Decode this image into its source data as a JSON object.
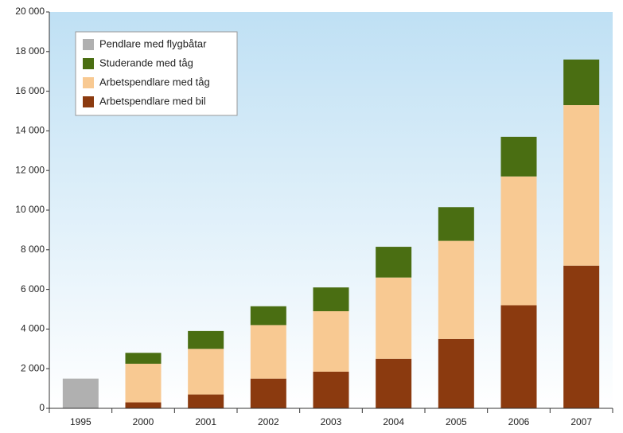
{
  "chart_data": {
    "type": "stacked_bar",
    "categories": [
      "1995",
      "2000",
      "2001",
      "2002",
      "2003",
      "2004",
      "2005",
      "2006",
      "2007"
    ],
    "series": [
      {
        "name": "Arbetspendlare med bil",
        "color": "#8b3a0f",
        "values": [
          null,
          300,
          700,
          1500,
          1850,
          2500,
          3500,
          5200,
          7200
        ]
      },
      {
        "name": "Arbetspendlare med tåg",
        "color": "#f8c992",
        "values": [
          null,
          1950,
          2300,
          2700,
          3050,
          4100,
          4950,
          6500,
          8100
        ]
      },
      {
        "name": "Studerande med tåg",
        "color": "#4a6e12",
        "values": [
          null,
          550,
          900,
          950,
          1200,
          1550,
          1700,
          2000,
          2300
        ]
      },
      {
        "name": "Pendlare med flygbåtar",
        "color": "#b0b0b0",
        "values": [
          1500,
          null,
          null,
          null,
          null,
          null,
          null,
          null,
          null
        ]
      }
    ],
    "ylim": [
      0,
      20000
    ],
    "yticks": [
      0,
      {
        "value": 2000,
        "label": "2 000"
      },
      {
        "value": 4000,
        "label": "4 000"
      },
      {
        "value": 6000,
        "label": "6 000"
      },
      {
        "value": 8000,
        "label": "8 000"
      },
      {
        "value": 10000,
        "label": "10 000"
      },
      {
        "value": 12000,
        "label": "12 000"
      },
      {
        "value": 14000,
        "label": "14 000"
      },
      {
        "value": 16000,
        "label": "16 000"
      },
      {
        "value": 18000,
        "label": "18 000"
      },
      {
        "value": 20000,
        "label": "20 000"
      }
    ]
  }
}
